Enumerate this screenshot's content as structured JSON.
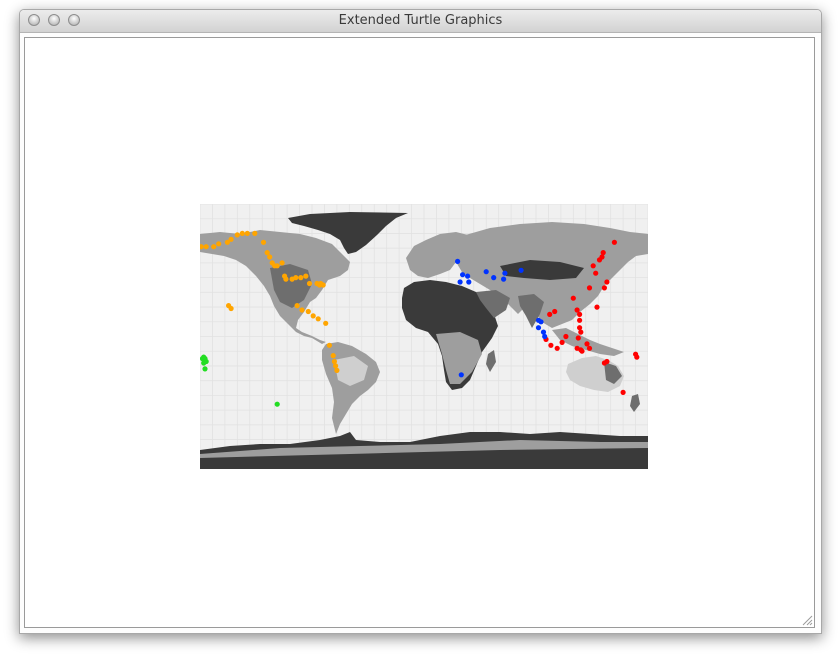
{
  "window": {
    "title": "Extended Turtle Graphics"
  },
  "map": {
    "projection": "equirectangular",
    "lon_range": [
      -180,
      180
    ],
    "lat_range": [
      -90,
      90
    ],
    "grid_step_degrees": 10,
    "background_color": "#f0f0f0",
    "ocean_color": "#f0f0f0",
    "land_colors": [
      "#cfcfcf",
      "#9e9e9e",
      "#6e6e6e",
      "#3a3a3a"
    ],
    "marker_groups": [
      {
        "color": "#ffa500",
        "points": [
          [
            -179,
            61
          ],
          [
            -175,
            61
          ],
          [
            -169,
            61
          ],
          [
            -165,
            63
          ],
          [
            -158,
            64
          ],
          [
            -155,
            66
          ],
          [
            -150,
            69
          ],
          [
            -146,
            70
          ],
          [
            -142,
            70
          ],
          [
            -136,
            70
          ],
          [
            -129,
            64
          ],
          [
            -126,
            57
          ],
          [
            -124,
            54
          ],
          [
            -122,
            50
          ],
          [
            -120,
            48
          ],
          [
            -118,
            48
          ],
          [
            -114,
            50
          ],
          [
            -112,
            41
          ],
          [
            -111,
            39
          ],
          [
            -106,
            39
          ],
          [
            -103,
            40
          ],
          [
            -99,
            40
          ],
          [
            -95,
            41
          ],
          [
            -92,
            36
          ],
          [
            -86,
            36
          ],
          [
            -84,
            35
          ],
          [
            -83,
            36
          ],
          [
            -81,
            35
          ],
          [
            -157,
            21
          ],
          [
            -155,
            19
          ],
          [
            -102,
            21
          ],
          [
            -98,
            18
          ],
          [
            -93,
            17
          ],
          [
            -89,
            14
          ],
          [
            -85,
            12
          ],
          [
            -79,
            9
          ],
          [
            -76,
            -6
          ],
          [
            -73,
            -13
          ],
          [
            -72,
            -17
          ],
          [
            -71,
            -20
          ],
          [
            -70,
            -23
          ]
        ]
      },
      {
        "color": "#ff0000",
        "points": [
          [
            101,
            15
          ],
          [
            105,
            17
          ],
          [
            125,
            15
          ],
          [
            123,
            18
          ],
          [
            139,
            20
          ],
          [
            145,
            33
          ],
          [
            147,
            37
          ],
          [
            138,
            43
          ],
          [
            136,
            48
          ],
          [
            141,
            52
          ],
          [
            143,
            54
          ],
          [
            144,
            57
          ],
          [
            153,
            64
          ],
          [
            133,
            33
          ],
          [
            120,
            26
          ],
          [
            114,
            0
          ],
          [
            111,
            -4
          ],
          [
            107,
            -8
          ],
          [
            102,
            -6
          ],
          [
            98,
            -2
          ],
          [
            123,
            -8
          ],
          [
            126,
            -9
          ],
          [
            127,
            -10
          ],
          [
            131,
            -5
          ],
          [
            124,
            -1
          ],
          [
            126,
            3
          ],
          [
            125,
            11
          ],
          [
            125,
            6
          ],
          [
            133,
            -8
          ],
          [
            147,
            -17
          ],
          [
            145,
            -18
          ],
          [
            170,
            -12
          ],
          [
            171,
            -14
          ],
          [
            160,
            -38
          ]
        ]
      },
      {
        "color": "#0033ff",
        "points": [
          [
            27,
            51
          ],
          [
            31,
            42
          ],
          [
            29,
            37
          ],
          [
            35,
            41
          ],
          [
            36,
            37
          ],
          [
            50,
            44
          ],
          [
            56,
            40
          ],
          [
            64,
            39
          ],
          [
            65,
            43
          ],
          [
            78,
            45
          ],
          [
            92,
            6
          ],
          [
            92,
            11
          ],
          [
            94,
            10
          ],
          [
            96,
            3
          ],
          [
            97,
            0
          ],
          [
            30,
            -26
          ]
        ]
      },
      {
        "color": "#22dd22",
        "points": [
          [
            -177,
            -14
          ],
          [
            -176,
            -15
          ],
          [
            -178,
            -15
          ],
          [
            -175,
            -17
          ],
          [
            -177,
            -18
          ],
          [
            -176,
            -22
          ],
          [
            -118,
            -46
          ]
        ]
      }
    ]
  }
}
